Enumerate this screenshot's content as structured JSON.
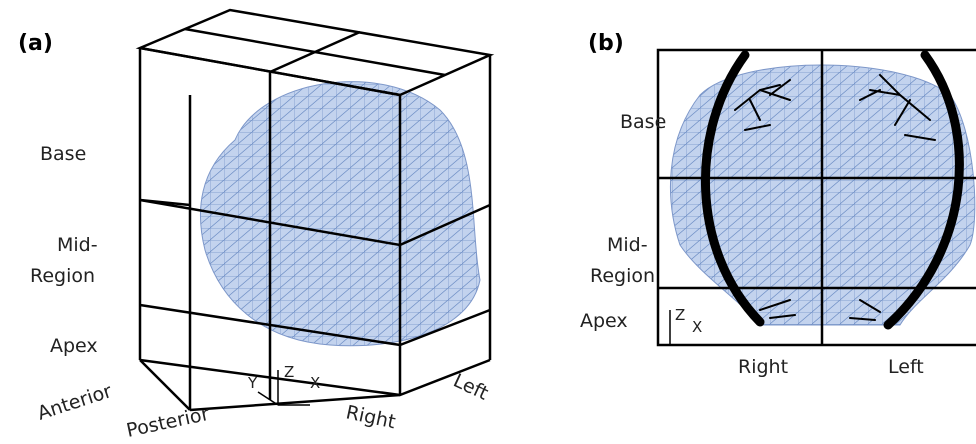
{
  "panels": [
    {
      "label": "(a)",
      "zones": {
        "base": "Base",
        "mid": [
          "Mid-",
          "Region"
        ],
        "apex": "Apex"
      },
      "directions": {
        "anterior": "Anterior",
        "posterior": "Posterior",
        "right": "Right",
        "left": "Left"
      },
      "axes": {
        "y": "Y",
        "z": "Z",
        "x": "X"
      }
    },
    {
      "label": "(b)",
      "zones": {
        "base": "Base",
        "mid": [
          "Mid-",
          "Region"
        ],
        "apex": "Apex"
      },
      "directions": {
        "right": "Right",
        "left": "Left"
      },
      "axes": {
        "z": "Z",
        "x": "X"
      }
    }
  ]
}
